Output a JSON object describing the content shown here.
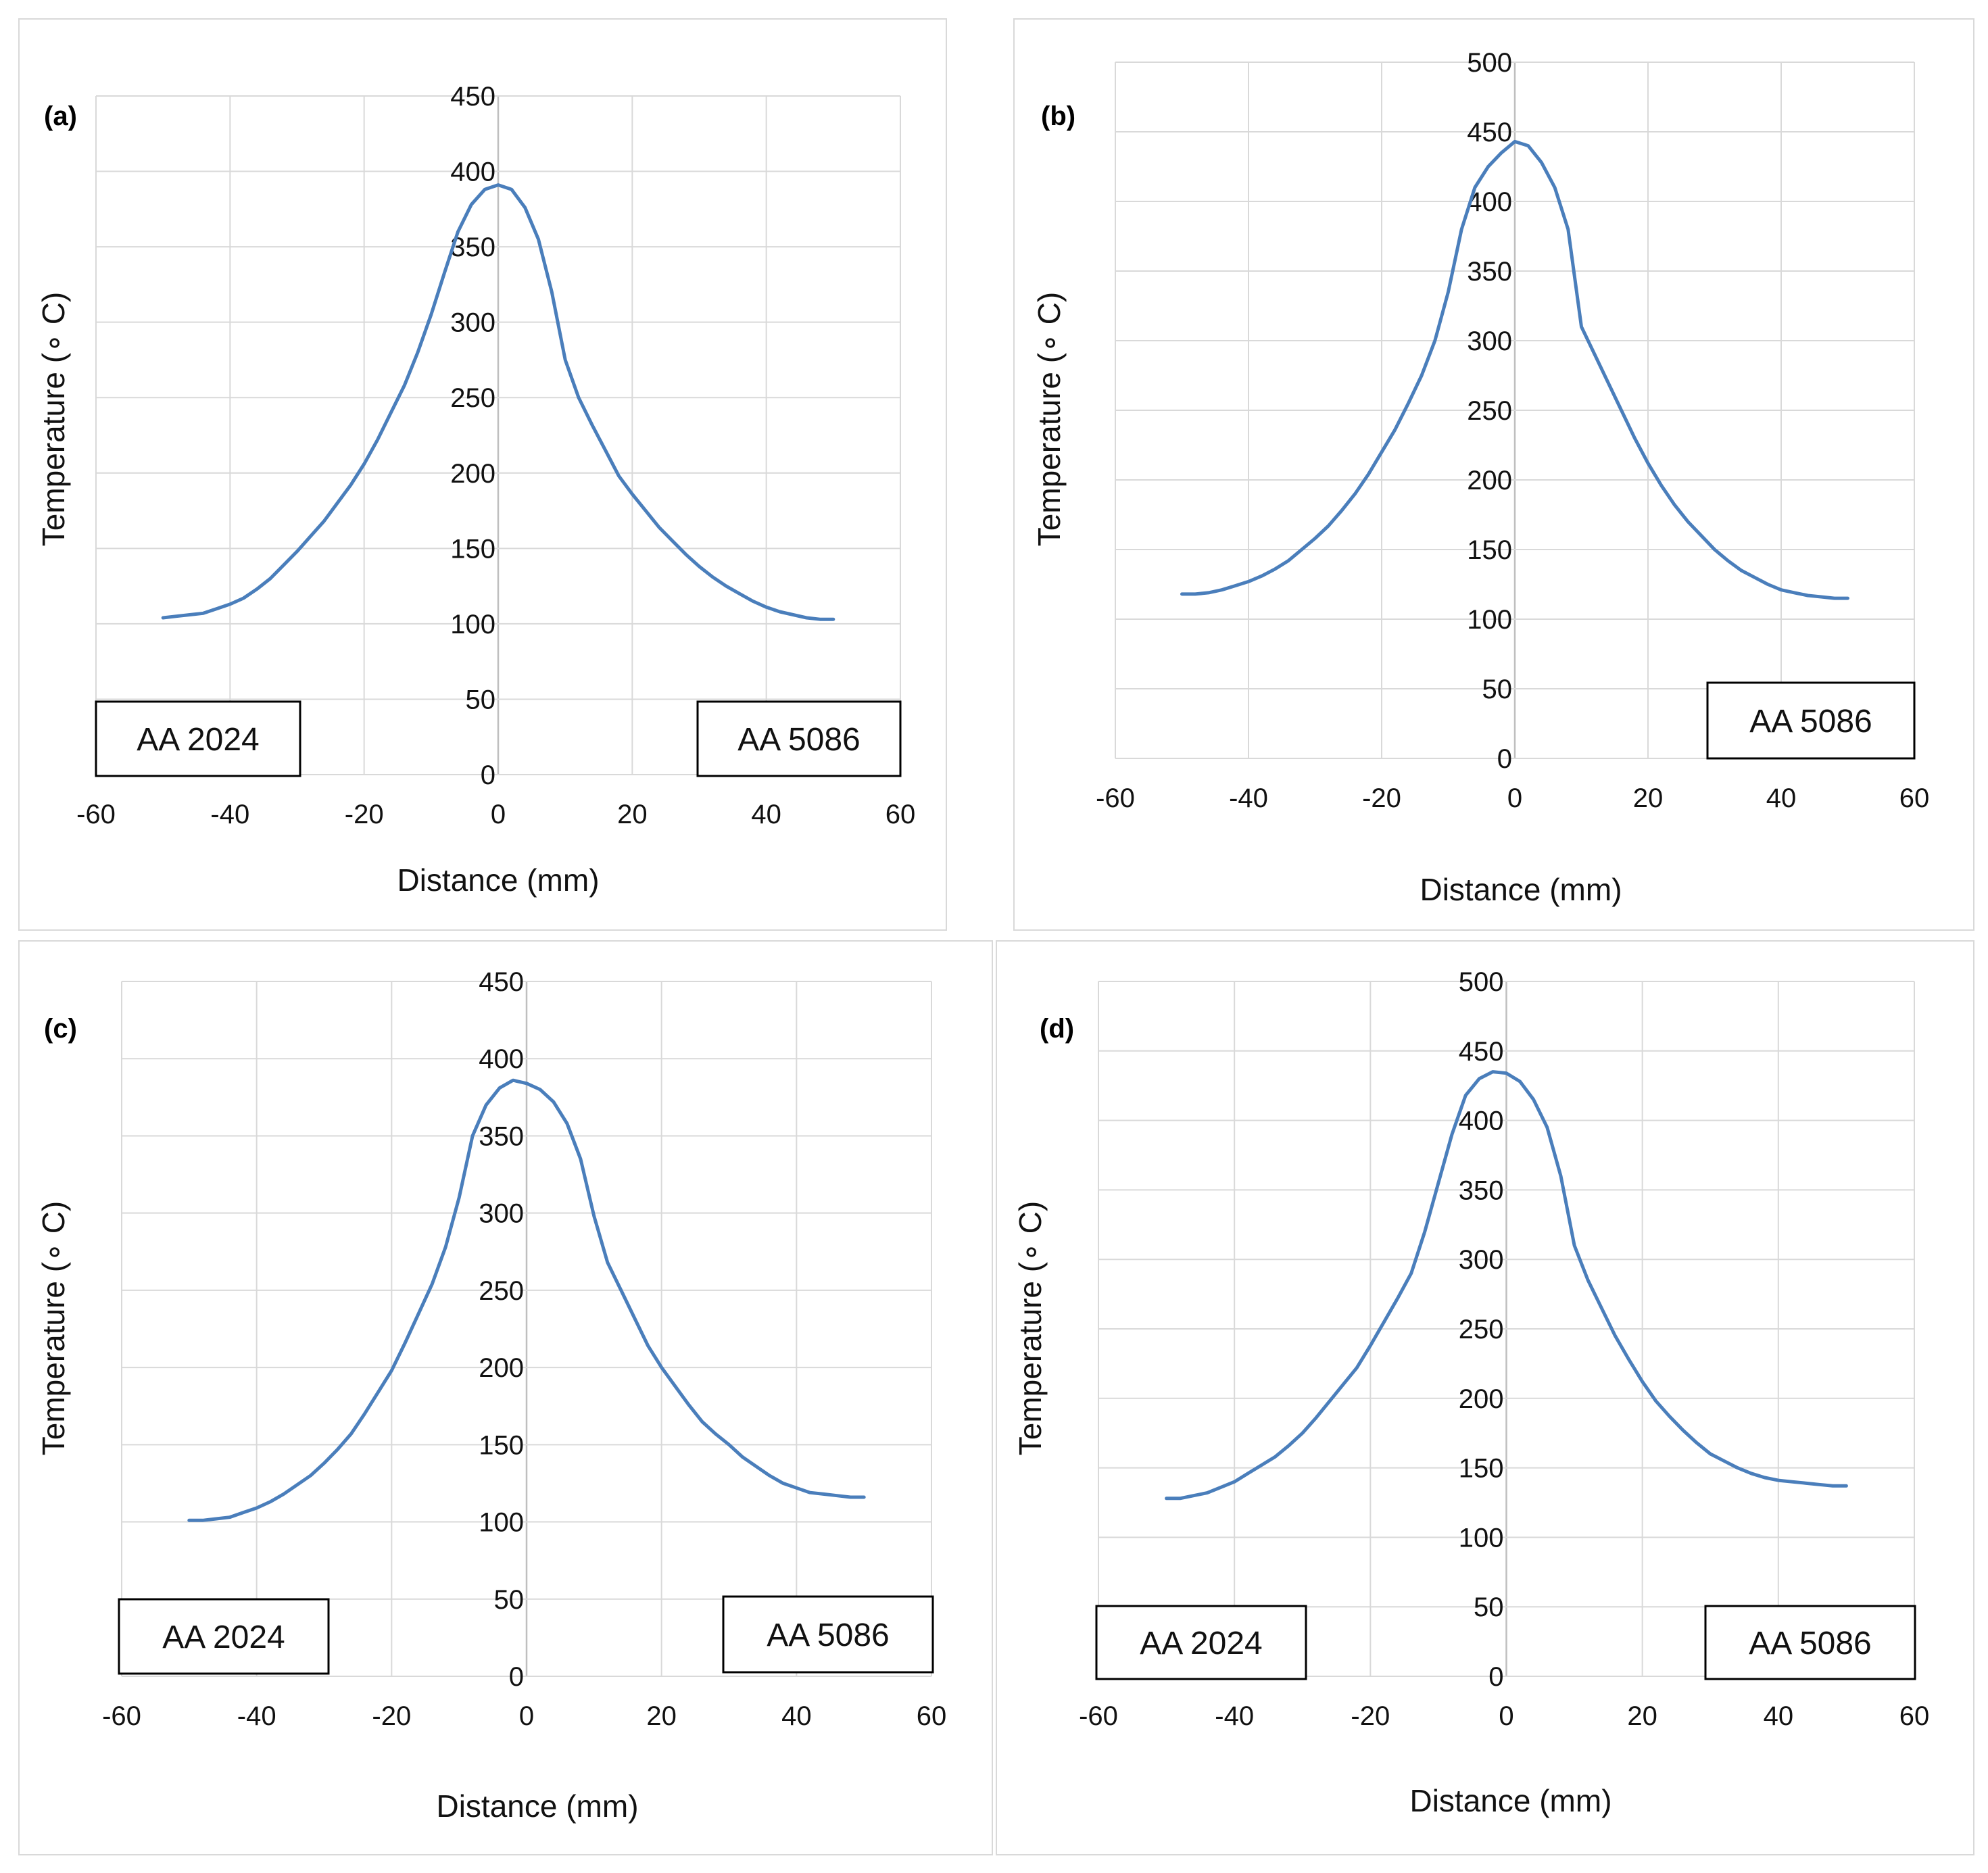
{
  "figure": {
    "line_color": "#4a7ebb",
    "x_axis_label": "Distance (mm)",
    "y_axis_label": "Temperature (∘ C)"
  },
  "chart_data": [
    {
      "panel": "(a)",
      "type": "line",
      "xlabel": "Distance (mm)",
      "ylabel": "Temperature (∘ C)",
      "xlim": [
        -60,
        60
      ],
      "ylim": [
        0,
        450
      ],
      "xticks": [
        -60,
        -40,
        -20,
        0,
        20,
        40,
        60
      ],
      "yticks": [
        0,
        50,
        100,
        150,
        200,
        250,
        300,
        350,
        400,
        450
      ],
      "grid": true,
      "material_labels": {
        "left": "AA 2024",
        "right": "AA 5086"
      },
      "series": [
        {
          "name": "Temperature",
          "x": [
            -50,
            -48,
            -46,
            -44,
            -42,
            -40,
            -38,
            -36,
            -34,
            -32,
            -30,
            -28,
            -26,
            -24,
            -22,
            -20,
            -18,
            -16,
            -14,
            -12,
            -10,
            -8,
            -6,
            -4,
            -2,
            0,
            2,
            4,
            6,
            8,
            10,
            12,
            14,
            16,
            18,
            20,
            22,
            24,
            26,
            28,
            30,
            32,
            34,
            36,
            38,
            40,
            42,
            44,
            46,
            48,
            50
          ],
          "y": [
            104,
            105,
            106,
            107,
            110,
            113,
            117,
            123,
            130,
            139,
            148,
            158,
            168,
            180,
            192,
            206,
            222,
            240,
            258,
            280,
            305,
            333,
            360,
            378,
            388,
            391,
            388,
            376,
            355,
            320,
            275,
            250,
            232,
            215,
            198,
            186,
            175,
            164,
            155,
            146,
            138,
            131,
            125,
            120,
            115,
            111,
            108,
            106,
            104,
            103,
            103
          ]
        }
      ]
    },
    {
      "panel": "(b)",
      "type": "line",
      "xlabel": "Distance (mm)",
      "ylabel": "Temperature (∘ C)",
      "xlim": [
        -60,
        60
      ],
      "ylim": [
        0,
        500
      ],
      "xticks": [
        -60,
        -40,
        -20,
        0,
        20,
        40,
        60
      ],
      "yticks": [
        0,
        50,
        100,
        150,
        200,
        250,
        300,
        350,
        400,
        450,
        500
      ],
      "grid": true,
      "material_labels": {
        "right": "AA 5086"
      },
      "series": [
        {
          "name": "Temperature",
          "x": [
            -50,
            -48,
            -46,
            -44,
            -42,
            -40,
            -38,
            -36,
            -34,
            -32,
            -30,
            -28,
            -26,
            -24,
            -22,
            -20,
            -18,
            -16,
            -14,
            -12,
            -10,
            -8,
            -6,
            -4,
            -2,
            0,
            2,
            4,
            6,
            8,
            10,
            12,
            14,
            16,
            18,
            20,
            22,
            24,
            26,
            28,
            30,
            32,
            34,
            36,
            38,
            40,
            42,
            44,
            46,
            48,
            50
          ],
          "y": [
            118,
            118,
            119,
            121,
            124,
            127,
            131,
            136,
            142,
            150,
            158,
            167,
            178,
            190,
            204,
            220,
            236,
            255,
            275,
            300,
            335,
            380,
            410,
            425,
            435,
            443,
            440,
            428,
            410,
            380,
            310,
            290,
            270,
            250,
            230,
            212,
            196,
            182,
            170,
            160,
            150,
            142,
            135,
            130,
            125,
            121,
            119,
            117,
            116,
            115,
            115
          ]
        }
      ]
    },
    {
      "panel": "(c)",
      "type": "line",
      "xlabel": "Distance (mm)",
      "ylabel": "Temperature (∘ C)",
      "xlim": [
        -60,
        60
      ],
      "ylim": [
        0,
        450
      ],
      "xticks": [
        -60,
        -40,
        -20,
        0,
        20,
        40,
        60
      ],
      "yticks": [
        0,
        50,
        100,
        150,
        200,
        250,
        300,
        350,
        400,
        450
      ],
      "grid": true,
      "material_labels": {
        "left": "AA 2024",
        "right": "AA 5086"
      },
      "series": [
        {
          "name": "Temperature",
          "x": [
            -50,
            -48,
            -46,
            -44,
            -42,
            -40,
            -38,
            -36,
            -34,
            -32,
            -30,
            -28,
            -26,
            -24,
            -22,
            -20,
            -18,
            -16,
            -14,
            -12,
            -10,
            -8,
            -6,
            -4,
            -2,
            0,
            2,
            4,
            6,
            8,
            10,
            12,
            14,
            16,
            18,
            20,
            22,
            24,
            26,
            28,
            30,
            32,
            34,
            36,
            38,
            40,
            42,
            44,
            46,
            48,
            50
          ],
          "y": [
            101,
            101,
            102,
            103,
            106,
            109,
            113,
            118,
            124,
            130,
            138,
            147,
            157,
            170,
            184,
            198,
            216,
            235,
            254,
            278,
            310,
            350,
            370,
            381,
            386,
            384,
            380,
            372,
            358,
            335,
            298,
            268,
            250,
            232,
            214,
            200,
            188,
            176,
            165,
            157,
            150,
            142,
            136,
            130,
            125,
            122,
            119,
            118,
            117,
            116,
            116
          ]
        }
      ]
    },
    {
      "panel": "(d)",
      "type": "line",
      "xlabel": "Distance (mm)",
      "ylabel": "Temperature (∘ C)",
      "xlim": [
        -60,
        60
      ],
      "ylim": [
        0,
        500
      ],
      "xticks": [
        -60,
        -40,
        -20,
        0,
        20,
        40,
        60
      ],
      "yticks": [
        0,
        50,
        100,
        150,
        200,
        250,
        300,
        350,
        400,
        450,
        500
      ],
      "grid": true,
      "material_labels": {
        "left": "AA 2024",
        "right": "AA 5086"
      },
      "series": [
        {
          "name": "Temperature",
          "x": [
            -50,
            -48,
            -46,
            -44,
            -42,
            -40,
            -38,
            -36,
            -34,
            -32,
            -30,
            -28,
            -26,
            -24,
            -22,
            -20,
            -18,
            -16,
            -14,
            -12,
            -10,
            -8,
            -6,
            -4,
            -2,
            0,
            2,
            4,
            6,
            8,
            10,
            12,
            14,
            16,
            18,
            20,
            22,
            24,
            26,
            28,
            30,
            32,
            34,
            36,
            38,
            40,
            42,
            44,
            46,
            48,
            50
          ],
          "y": [
            128,
            128,
            130,
            132,
            136,
            140,
            146,
            152,
            158,
            166,
            175,
            186,
            198,
            210,
            222,
            238,
            255,
            272,
            290,
            320,
            355,
            390,
            418,
            430,
            435,
            434,
            428,
            415,
            395,
            360,
            310,
            285,
            265,
            245,
            228,
            212,
            198,
            187,
            177,
            168,
            160,
            155,
            150,
            146,
            143,
            141,
            140,
            139,
            138,
            137,
            137
          ]
        }
      ]
    }
  ]
}
